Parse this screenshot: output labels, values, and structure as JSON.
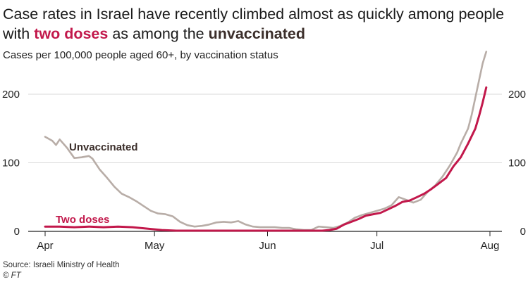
{
  "headline": {
    "part1": "Case rates in Israel have recently climbed almost as quickly among people with ",
    "two_doses": "two doses",
    "part2": " as among the ",
    "unvaccinated": "unvaccinated"
  },
  "source": "Source: Israeli Ministry of Health",
  "credit": "© FT",
  "colors": {
    "two_doses": "#c2184b",
    "unvaccinated": "#b8ada7",
    "grid": "#d9d9d9",
    "axis": "#222222"
  },
  "chart_data": {
    "type": "line",
    "title": "Case rates in Israel have recently climbed almost as quickly among people with two doses as among the unvaccinated",
    "subtitle": "Cases per 100,000 people aged 60+, by vaccination status",
    "xlabel": "",
    "ylabel": "",
    "x_unit": "day index from April 1",
    "xlim": [
      0,
      124
    ],
    "ylim": [
      0,
      220
    ],
    "y_ticks": [
      0,
      100,
      200
    ],
    "x_ticks": [
      {
        "label": "Apr",
        "x": 0
      },
      {
        "label": "May",
        "x": 30
      },
      {
        "label": "Jun",
        "x": 61
      },
      {
        "label": "Jul",
        "x": 91
      },
      {
        "label": "Aug",
        "x": 122
      }
    ],
    "series": [
      {
        "name": "Unvaccinated",
        "label": "Unvaccinated",
        "x": [
          0,
          2,
          3,
          4,
          6,
          8,
          10,
          12,
          13,
          15,
          17,
          19,
          21,
          23,
          25,
          27,
          29,
          31,
          33,
          35,
          37,
          39,
          41,
          43,
          45,
          47,
          49,
          51,
          53,
          55,
          57,
          59,
          61,
          63,
          65,
          67,
          69,
          71,
          73,
          75,
          77,
          79,
          81,
          83,
          85,
          87,
          89,
          91,
          93,
          95,
          97,
          99,
          101,
          103,
          105,
          107,
          109,
          111,
          113,
          114,
          116,
          117,
          118,
          119,
          120,
          121
        ],
        "values": [
          138,
          132,
          126,
          134,
          122,
          107,
          108,
          110,
          106,
          90,
          78,
          65,
          55,
          50,
          44,
          37,
          30,
          26,
          25,
          22,
          14,
          9,
          7,
          8,
          10,
          13,
          14,
          13,
          15,
          10,
          7,
          6,
          6,
          6,
          5,
          5,
          3,
          2,
          2,
          7,
          6,
          5,
          8,
          13,
          20,
          24,
          27,
          30,
          33,
          38,
          50,
          46,
          42,
          46,
          58,
          67,
          80,
          96,
          115,
          128,
          150,
          170,
          195,
          220,
          245,
          262
        ]
      },
      {
        "name": "Two doses",
        "label": "Two doses",
        "x": [
          0,
          4,
          8,
          12,
          16,
          20,
          24,
          28,
          32,
          36,
          40,
          44,
          48,
          52,
          56,
          60,
          64,
          68,
          72,
          76,
          78,
          80,
          82,
          84,
          86,
          88,
          90,
          92,
          94,
          96,
          98,
          100,
          102,
          104,
          106,
          108,
          110,
          112,
          114,
          116,
          118,
          119,
          120,
          121
        ],
        "values": [
          7,
          7,
          6,
          7,
          6,
          7,
          6,
          4,
          2,
          1,
          1,
          1,
          1,
          1,
          1,
          1,
          1,
          1,
          1,
          1,
          2,
          4,
          10,
          14,
          18,
          23,
          25,
          27,
          32,
          37,
          43,
          45,
          50,
          55,
          62,
          70,
          78,
          95,
          108,
          128,
          150,
          168,
          188,
          210
        ]
      }
    ]
  }
}
